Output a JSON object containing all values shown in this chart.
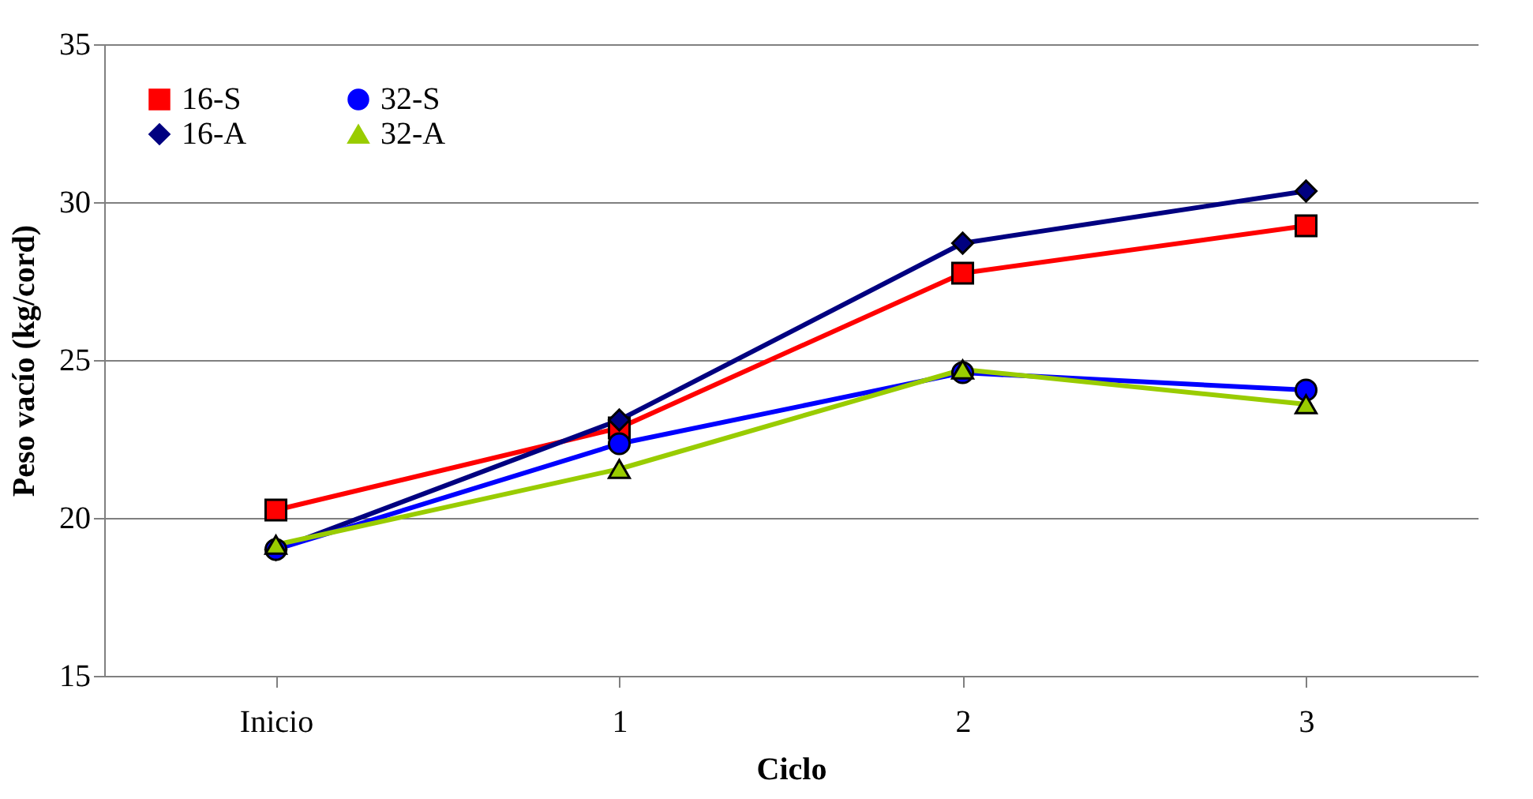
{
  "chart_data": {
    "type": "line",
    "xlabel": "Ciclo",
    "ylabel": "Peso vacío (kg/cord)",
    "categories": [
      "Inicio",
      "1",
      "2",
      "3"
    ],
    "series": [
      {
        "name": "16-S",
        "color": "#ff0000",
        "marker": "square",
        "values": [
          20.25,
          22.85,
          27.75,
          29.25
        ]
      },
      {
        "name": "16-A",
        "color": "#000080",
        "marker": "diamond",
        "values": [
          19.0,
          23.1,
          28.7,
          30.35
        ]
      },
      {
        "name": "32-S",
        "color": "#0000ff",
        "marker": "circle",
        "values": [
          19.0,
          22.35,
          24.6,
          24.05
        ]
      },
      {
        "name": "32-A",
        "color": "#99cc00",
        "marker": "triangle",
        "values": [
          19.15,
          21.55,
          24.7,
          23.6
        ]
      }
    ],
    "ylim": [
      15,
      35
    ],
    "yticks": [
      15,
      20,
      25,
      30,
      35
    ],
    "grid": "y",
    "legend": "top left",
    "line_style": "solid"
  }
}
